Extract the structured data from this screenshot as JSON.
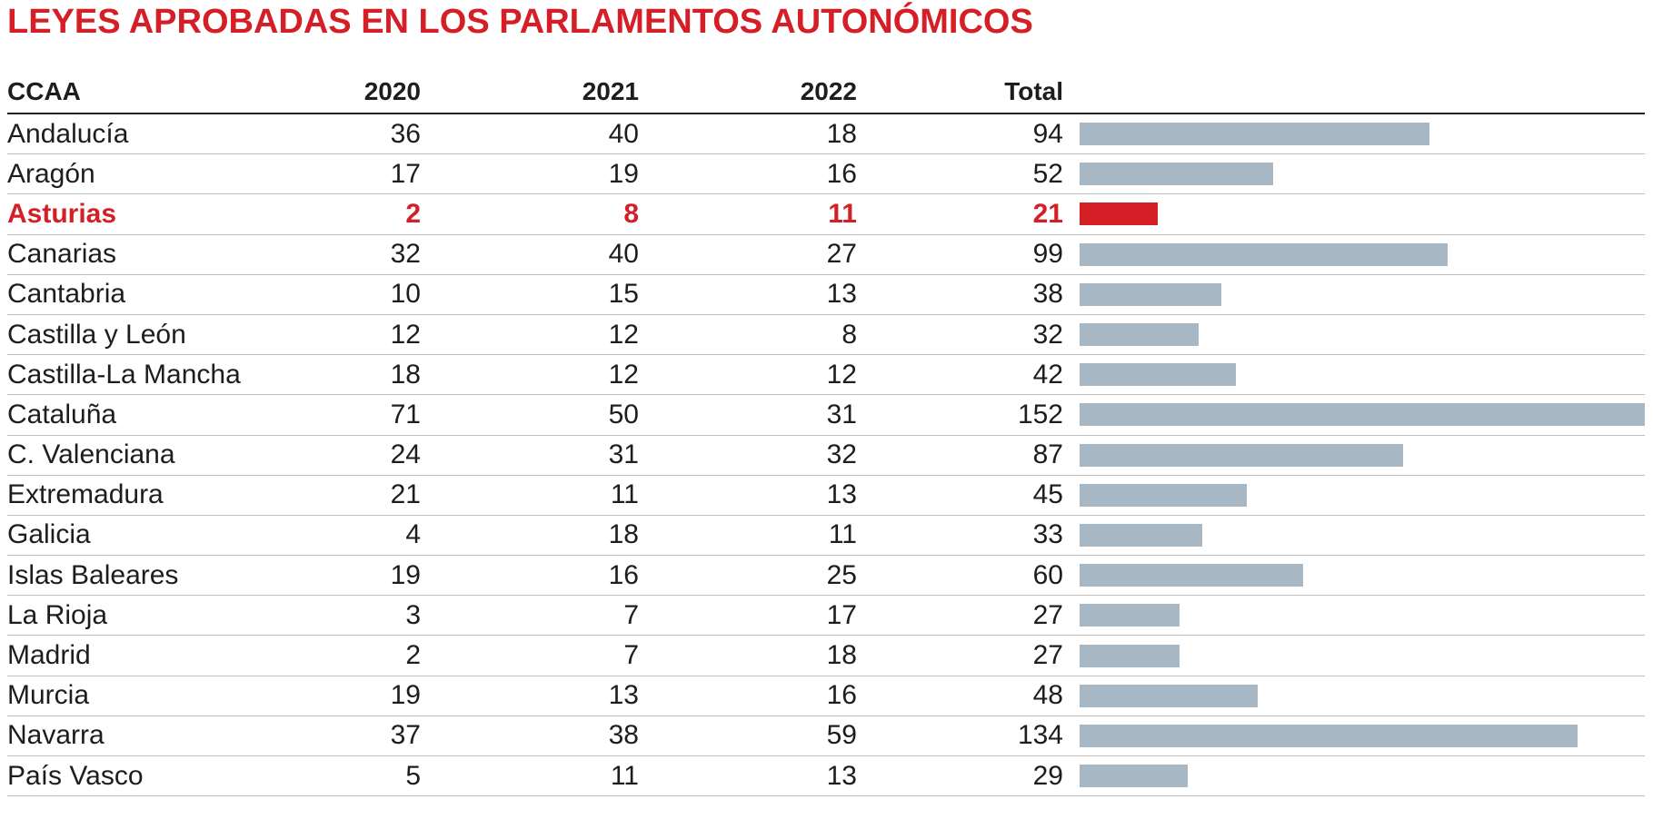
{
  "title": "LEYES APROBADAS EN LOS PARLAMENTOS AUTONÓMICOS",
  "colors": {
    "title_red": "#d41f26",
    "highlight_red": "#d41f26",
    "bar_gray_blue": "#a7b8c4",
    "header_rule": "#222222",
    "row_rule": "#bdbdbd",
    "text": "#1d1d1b"
  },
  "table": {
    "headers": [
      "CCAA",
      "2020",
      "2021",
      "2022",
      "Total"
    ],
    "rows": [
      {
        "ccaa": "Andalucía",
        "y2020": "36",
        "y2021": "40",
        "y2022": "18",
        "total": "94",
        "highlight": false
      },
      {
        "ccaa": "Aragón",
        "y2020": "17",
        "y2021": "19",
        "y2022": "16",
        "total": "52",
        "highlight": false
      },
      {
        "ccaa": "Asturias",
        "y2020": "2",
        "y2021": "8",
        "y2022": "11",
        "total": "21",
        "highlight": true
      },
      {
        "ccaa": "Canarias",
        "y2020": "32",
        "y2021": "40",
        "y2022": "27",
        "total": "99",
        "highlight": false
      },
      {
        "ccaa": "Cantabria",
        "y2020": "10",
        "y2021": "15",
        "y2022": "13",
        "total": "38",
        "highlight": false
      },
      {
        "ccaa": "Castilla y León",
        "y2020": "12",
        "y2021": "12",
        "y2022": "8",
        "total": "32",
        "highlight": false
      },
      {
        "ccaa": "Castilla-La Mancha",
        "y2020": "18",
        "y2021": "12",
        "y2022": "12",
        "total": "42",
        "highlight": false
      },
      {
        "ccaa": "Cataluña",
        "y2020": "71",
        "y2021": "50",
        "y2022": "31",
        "total": "152",
        "highlight": false
      },
      {
        "ccaa": "C. Valenciana",
        "y2020": "24",
        "y2021": "31",
        "y2022": "32",
        "total": "87",
        "highlight": false
      },
      {
        "ccaa": "Extremadura",
        "y2020": "21",
        "y2021": "11",
        "y2022": "13",
        "total": "45",
        "highlight": false
      },
      {
        "ccaa": "Galicia",
        "y2020": "4",
        "y2021": "18",
        "y2022": "11",
        "total": "33",
        "highlight": false
      },
      {
        "ccaa": "Islas Baleares",
        "y2020": "19",
        "y2021": "16",
        "y2022": "25",
        "total": "60",
        "highlight": false
      },
      {
        "ccaa": "La Rioja",
        "y2020": "3",
        "y2021": "7",
        "y2022": "17",
        "total": "27",
        "highlight": false
      },
      {
        "ccaa": "Madrid",
        "y2020": "2",
        "y2021": "7",
        "y2022": "18",
        "total": "27",
        "highlight": false
      },
      {
        "ccaa": "Murcia",
        "y2020": "19",
        "y2021": "13",
        "y2022": "16",
        "total": "48",
        "highlight": false
      },
      {
        "ccaa": "Navarra",
        "y2020": "37",
        "y2021": "38",
        "y2022": "59",
        "total": "134",
        "highlight": false
      },
      {
        "ccaa": "País Vasco",
        "y2020": "5",
        "y2021": "11",
        "y2022": "13",
        "total": "29",
        "highlight": false
      }
    ]
  },
  "chart_data": {
    "type": "bar",
    "orientation": "horizontal",
    "title": "LEYES APROBADAS EN LOS PARLAMENTOS AUTONÓMICOS",
    "categories": [
      "Andalucía",
      "Aragón",
      "Asturias",
      "Canarias",
      "Cantabria",
      "Castilla y León",
      "Castilla-La Mancha",
      "Cataluña",
      "C. Valenciana",
      "Extremadura",
      "Galicia",
      "Islas Baleares",
      "La Rioja",
      "Madrid",
      "Murcia",
      "Navarra",
      "País Vasco"
    ],
    "series": [
      {
        "name": "2020",
        "values": [
          36,
          17,
          2,
          32,
          10,
          12,
          18,
          71,
          24,
          21,
          4,
          19,
          3,
          2,
          19,
          37,
          5
        ]
      },
      {
        "name": "2021",
        "values": [
          40,
          19,
          8,
          40,
          15,
          12,
          12,
          50,
          31,
          11,
          18,
          16,
          7,
          7,
          13,
          38,
          11
        ]
      },
      {
        "name": "2022",
        "values": [
          18,
          16,
          11,
          27,
          13,
          8,
          12,
          31,
          32,
          13,
          11,
          25,
          17,
          18,
          16,
          59,
          13
        ]
      },
      {
        "name": "Total",
        "values": [
          94,
          52,
          21,
          99,
          38,
          32,
          42,
          152,
          87,
          45,
          33,
          60,
          27,
          27,
          48,
          134,
          29
        ]
      }
    ],
    "bars_plot_series": "Total",
    "xlim": [
      0,
      152
    ],
    "highlight_category": "Asturias",
    "highlight_color": "#d41f26",
    "bar_color": "#a7b8c4",
    "legend": "none",
    "grid": "horizontal row separators only",
    "xlabel": "",
    "ylabel": ""
  }
}
